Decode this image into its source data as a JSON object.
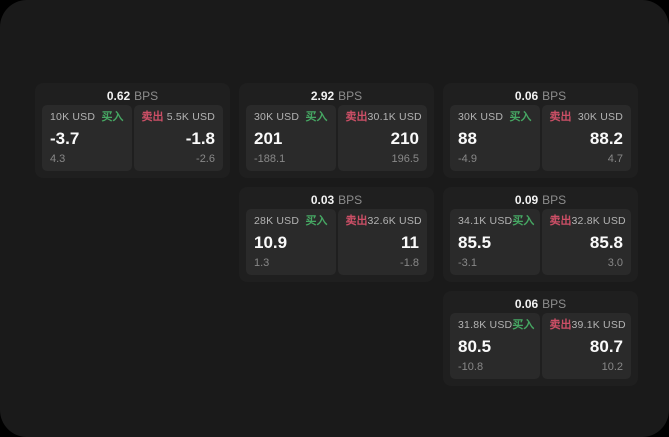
{
  "page": {
    "bps_unit": "BPS",
    "buy_label": "买入",
    "sell_label": "卖出"
  },
  "colors": {
    "background": "#000000",
    "window": "#1a1a1a",
    "card": "#1f1f1f",
    "pane": "#2a2a2a",
    "buy_green": "#46a763",
    "sell_red": "#cc4f66",
    "text_primary": "#fafafa",
    "text_secondary": "#b3b3b3",
    "text_muted": "#888888"
  },
  "cards": [
    {
      "row": 1,
      "col": 1,
      "bps": "0.62",
      "buy": {
        "amount": "10K USD",
        "value": "-3.7",
        "sub": "4.3"
      },
      "sell": {
        "amount": "5.5K USD",
        "value": "-1.8",
        "sub": "-2.6"
      }
    },
    {
      "row": 1,
      "col": 2,
      "bps": "2.92",
      "buy": {
        "amount": "30K USD",
        "value": "201",
        "sub": "-188.1"
      },
      "sell": {
        "amount": "30.1K USD",
        "value": "210",
        "sub": "196.5"
      }
    },
    {
      "row": 1,
      "col": 3,
      "bps": "0.06",
      "buy": {
        "amount": "30K USD",
        "value": "88",
        "sub": "-4.9"
      },
      "sell": {
        "amount": "30K USD",
        "value": "88.2",
        "sub": "4.7"
      }
    },
    {
      "row": 2,
      "col": 2,
      "bps": "0.03",
      "buy": {
        "amount": "28K USD",
        "value": "10.9",
        "sub": "1.3"
      },
      "sell": {
        "amount": "32.6K USD",
        "value": "11",
        "sub": "-1.8"
      }
    },
    {
      "row": 2,
      "col": 3,
      "bps": "0.09",
      "buy": {
        "amount": "34.1K USD",
        "value": "85.5",
        "sub": "-3.1"
      },
      "sell": {
        "amount": "32.8K USD",
        "value": "85.8",
        "sub": "3.0"
      }
    },
    {
      "row": 3,
      "col": 3,
      "bps": "0.06",
      "buy": {
        "amount": "31.8K USD",
        "value": "80.5",
        "sub": "-10.8"
      },
      "sell": {
        "amount": "39.1K USD",
        "value": "80.7",
        "sub": "10.2"
      }
    }
  ]
}
